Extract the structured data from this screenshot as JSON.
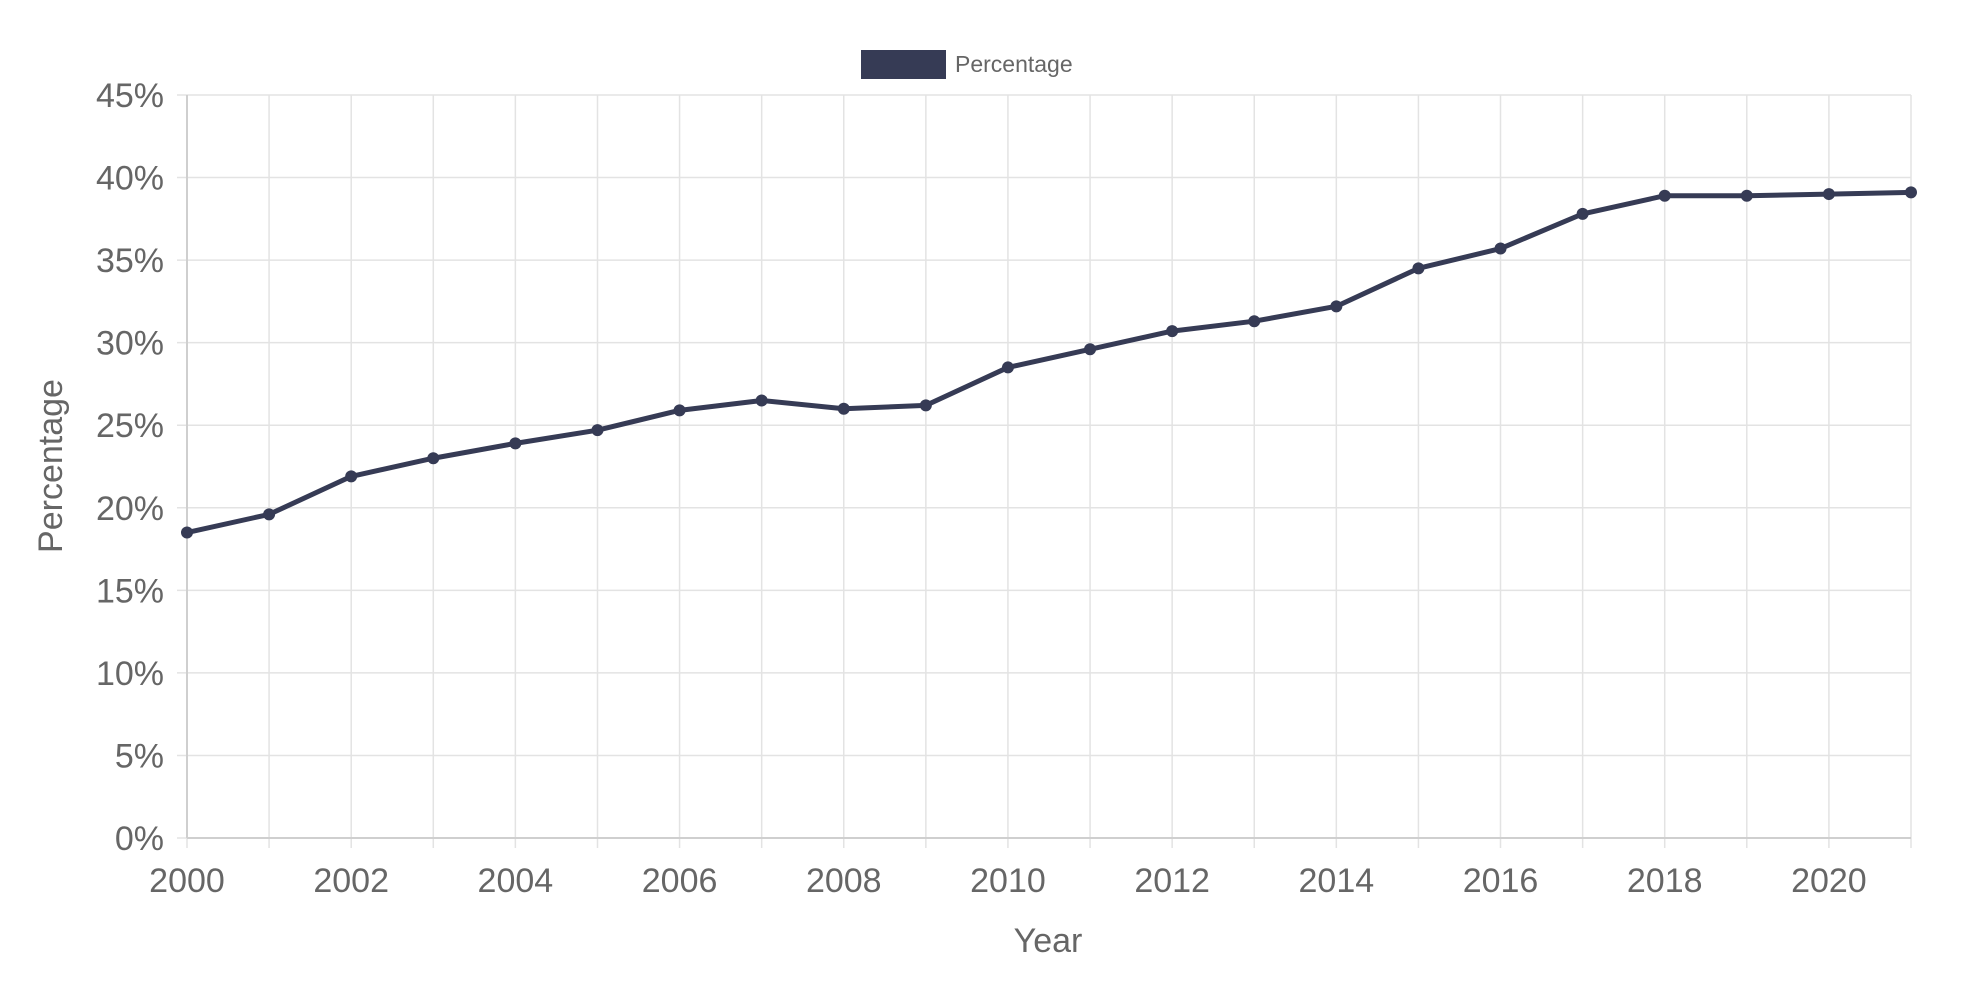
{
  "chart_data": {
    "type": "line",
    "title": "",
    "xlabel": "Year",
    "ylabel": "Percentage",
    "legend": {
      "position": "top-center",
      "entries": [
        "Percentage"
      ]
    },
    "x": [
      2000,
      2001,
      2002,
      2003,
      2004,
      2005,
      2006,
      2007,
      2008,
      2009,
      2010,
      2011,
      2012,
      2013,
      2014,
      2015,
      2016,
      2017,
      2018,
      2019,
      2020,
      2021
    ],
    "series": [
      {
        "name": "Percentage",
        "color": "#363b55",
        "values": [
          18.5,
          19.6,
          21.9,
          23.0,
          23.9,
          24.7,
          25.9,
          26.5,
          26.0,
          26.2,
          28.5,
          29.6,
          30.7,
          31.3,
          32.2,
          34.5,
          35.7,
          37.8,
          38.9,
          38.9,
          39.0,
          39.1
        ]
      }
    ],
    "xlim": [
      2000,
      2021
    ],
    "ylim": [
      0,
      45
    ],
    "x_ticks": [
      "2000",
      "2002",
      "2004",
      "2006",
      "2008",
      "2010",
      "2012",
      "2014",
      "2016",
      "2018",
      "2020"
    ],
    "y_ticks": [
      "0%",
      "5%",
      "10%",
      "15%",
      "20%",
      "25%",
      "30%",
      "35%",
      "40%",
      "45%"
    ],
    "grid": true
  }
}
